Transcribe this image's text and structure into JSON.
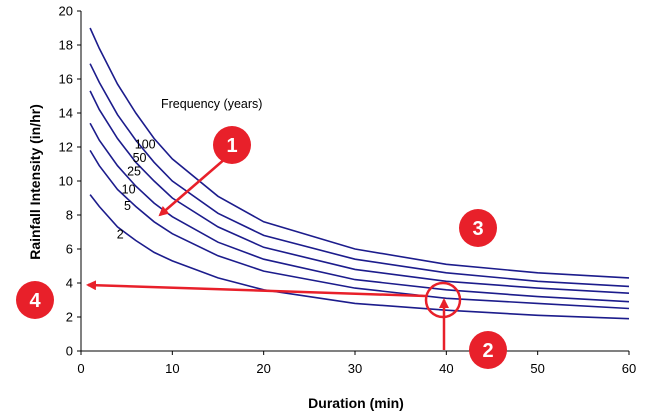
{
  "chart_data": {
    "type": "line",
    "title": "",
    "xlabel": "Duration (min)",
    "ylabel": "Rainfall Intensity (in/hr)",
    "xlim": [
      0,
      60
    ],
    "ylim": [
      0,
      20
    ],
    "xticks": [
      0,
      10,
      20,
      30,
      40,
      50,
      60
    ],
    "yticks": [
      0,
      2,
      4,
      6,
      8,
      10,
      12,
      14,
      16,
      18,
      20
    ],
    "grid": false,
    "legend_title": "Frequency (years)",
    "x": [
      1,
      2,
      4,
      6,
      8,
      10,
      15,
      20,
      30,
      40,
      50,
      60
    ],
    "series": [
      {
        "name": "100",
        "values": [
          19.0,
          17.8,
          15.7,
          14.0,
          12.5,
          11.3,
          9.1,
          7.6,
          6.0,
          5.1,
          4.6,
          4.3
        ]
      },
      {
        "name": "50",
        "values": [
          16.9,
          15.8,
          13.9,
          12.4,
          11.1,
          10.0,
          8.1,
          6.8,
          5.4,
          4.6,
          4.1,
          3.8
        ]
      },
      {
        "name": "25",
        "values": [
          15.3,
          14.2,
          12.5,
          11.1,
          10.0,
          9.0,
          7.3,
          6.1,
          4.8,
          4.1,
          3.7,
          3.4
        ]
      },
      {
        "name": "10",
        "values": [
          13.4,
          12.4,
          10.9,
          9.7,
          8.7,
          7.9,
          6.4,
          5.4,
          4.2,
          3.6,
          3.2,
          2.9
        ]
      },
      {
        "name": "5",
        "values": [
          11.8,
          10.9,
          9.5,
          8.5,
          7.6,
          6.9,
          5.6,
          4.7,
          3.7,
          3.1,
          2.8,
          2.5
        ]
      },
      {
        "name": "2",
        "values": [
          9.2,
          8.5,
          7.3,
          6.5,
          5.8,
          5.3,
          4.3,
          3.6,
          2.8,
          2.4,
          2.1,
          1.9
        ]
      }
    ],
    "annotations": [
      {
        "label": "1",
        "meaning": "arrow pointing to the 5-year curve label"
      },
      {
        "label": "2",
        "meaning": "arrow rising from 40 min on the x-axis to the curve"
      },
      {
        "label": "3",
        "meaning": "callout in the upper right of the plot area"
      },
      {
        "label": "4",
        "meaning": "arrow pointing left to 4 in/hr on the y-axis"
      }
    ],
    "colors": {
      "curve": "#1c1c8c",
      "annotation": "#e8202a",
      "axis": "#000000"
    }
  }
}
